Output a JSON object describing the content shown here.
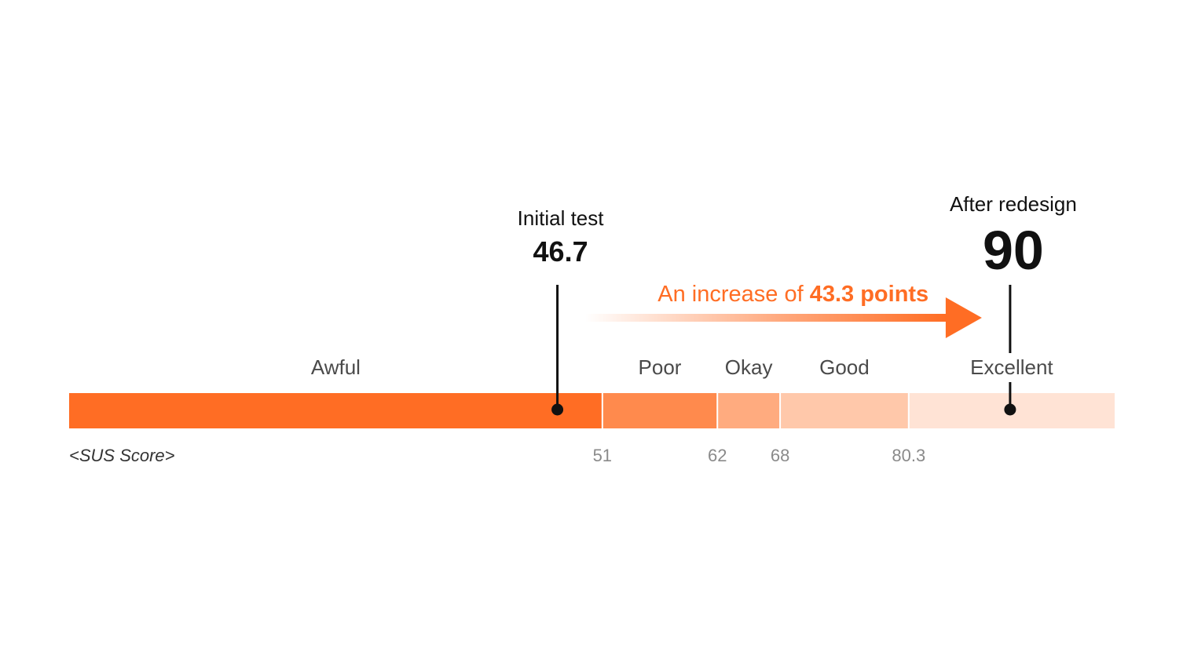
{
  "chart_data": {
    "type": "bar",
    "orientation": "horizontal-segmented-scale",
    "axis_title": "<SUS Score>",
    "xlim": [
      0,
      100
    ],
    "segments": [
      {
        "label": "Awful",
        "start": 0,
        "end": 51,
        "color": "#ff6d24"
      },
      {
        "label": "Poor",
        "start": 51,
        "end": 62,
        "color": "#ff8a4d"
      },
      {
        "label": "Okay",
        "start": 62,
        "end": 68,
        "color": "#ffab7f"
      },
      {
        "label": "Good",
        "start": 68,
        "end": 80.3,
        "color": "#ffc8aa"
      },
      {
        "label": "Excellent",
        "start": 80.3,
        "end": 100,
        "color": "#ffe3d5"
      }
    ],
    "tick_labels": [
      "51",
      "62",
      "68",
      "80.3"
    ],
    "tick_values": [
      51,
      62,
      68,
      80.3
    ],
    "markers": [
      {
        "caption": "Initial test",
        "value": 46.7,
        "value_label": "46.7"
      },
      {
        "caption": "After redesign",
        "value": 90,
        "value_label": "90"
      }
    ],
    "annotation": {
      "prefix": "An increase of ",
      "highlight": "43.3 points",
      "color": "#ff6d24"
    }
  }
}
